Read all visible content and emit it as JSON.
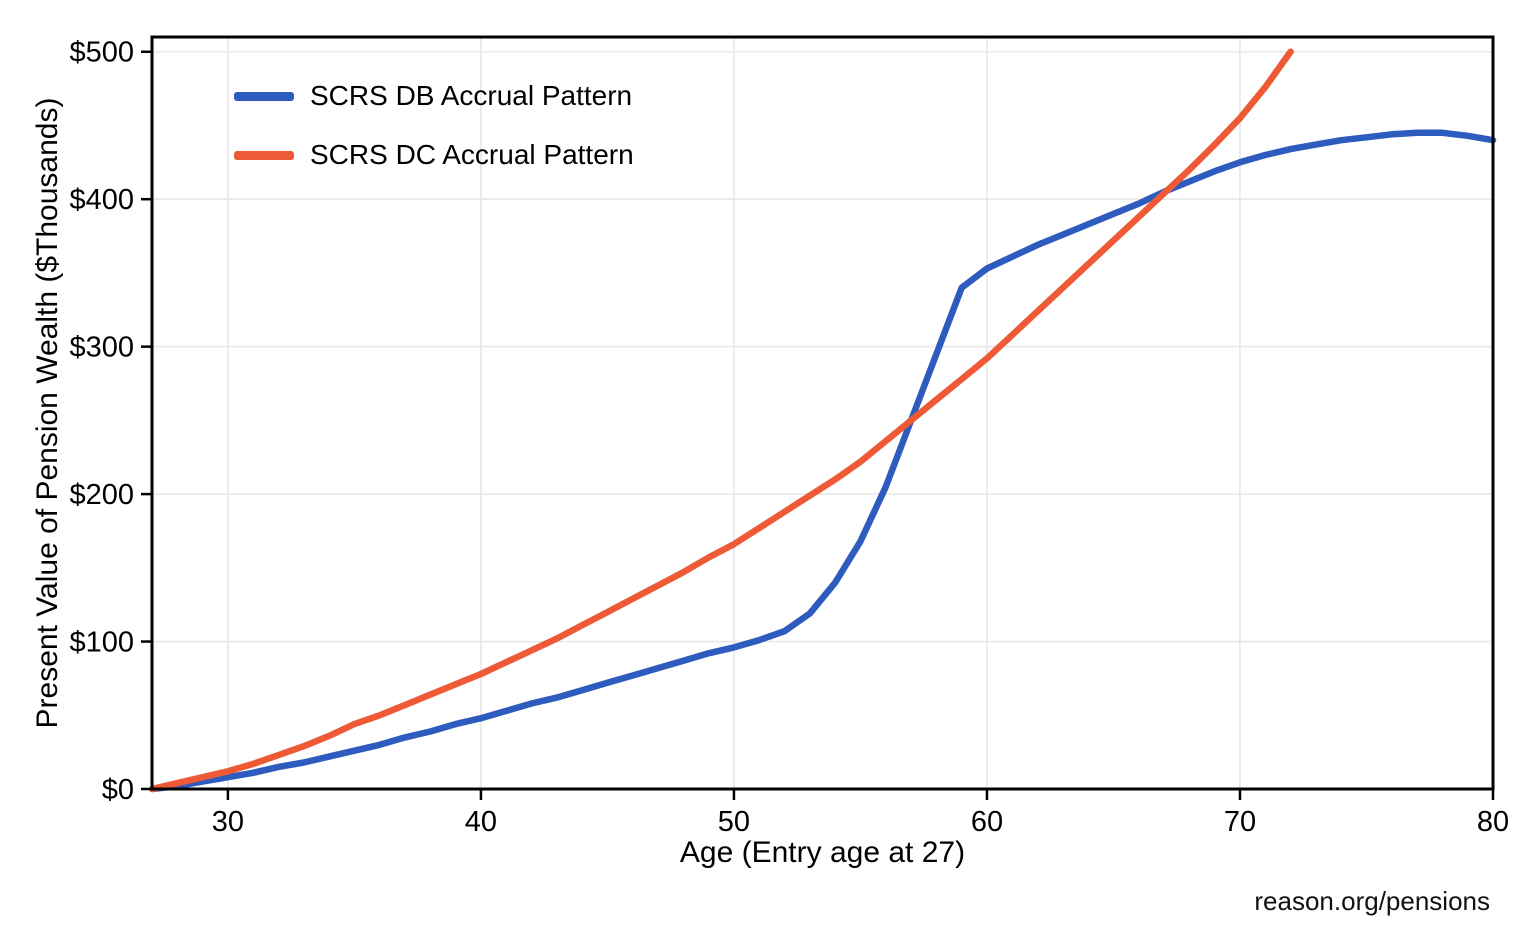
{
  "page": {
    "background": "#ffffff",
    "watermark": "reason.org/pensions"
  },
  "chart_data": {
    "type": "line",
    "title": "",
    "xlabel": "Age (Entry age at 27)",
    "ylabel": "Present Value of Pension Wealth ($Thousands)",
    "xlim": [
      27,
      80
    ],
    "ylim": [
      0,
      510
    ],
    "x_ticks": [
      30,
      40,
      50,
      60,
      70,
      80
    ],
    "y_ticks": [
      0,
      100,
      200,
      300,
      400,
      500
    ],
    "y_tick_labels": [
      "$0",
      "$100",
      "$200",
      "$300",
      "$400",
      "$500"
    ],
    "grid": true,
    "grid_color": "#e8e8e8",
    "border_color": "#000000",
    "legend_position": "top-left-inside",
    "series": [
      {
        "name": "SCRS DB Accrual Pattern",
        "color": "#2e5cbe",
        "points": [
          [
            27,
            0
          ],
          [
            28,
            2
          ],
          [
            29,
            5
          ],
          [
            30,
            8
          ],
          [
            31,
            11
          ],
          [
            32,
            15
          ],
          [
            33,
            18
          ],
          [
            34,
            22
          ],
          [
            35,
            26
          ],
          [
            36,
            30
          ],
          [
            37,
            35
          ],
          [
            38,
            39
          ],
          [
            39,
            44
          ],
          [
            40,
            48
          ],
          [
            41,
            53
          ],
          [
            42,
            58
          ],
          [
            43,
            62
          ],
          [
            44,
            67
          ],
          [
            45,
            72
          ],
          [
            46,
            77
          ],
          [
            47,
            82
          ],
          [
            48,
            87
          ],
          [
            49,
            92
          ],
          [
            50,
            96
          ],
          [
            51,
            101
          ],
          [
            52,
            107
          ],
          [
            53,
            119
          ],
          [
            54,
            140
          ],
          [
            55,
            168
          ],
          [
            56,
            205
          ],
          [
            57,
            250
          ],
          [
            58,
            295
          ],
          [
            59,
            340
          ],
          [
            60,
            353
          ],
          [
            61,
            361
          ],
          [
            62,
            369
          ],
          [
            63,
            376
          ],
          [
            64,
            383
          ],
          [
            65,
            390
          ],
          [
            66,
            397
          ],
          [
            67,
            405
          ],
          [
            68,
            412
          ],
          [
            69,
            419
          ],
          [
            70,
            425
          ],
          [
            71,
            430
          ],
          [
            72,
            434
          ],
          [
            73,
            437
          ],
          [
            74,
            440
          ],
          [
            75,
            442
          ],
          [
            76,
            444
          ],
          [
            77,
            445
          ],
          [
            78,
            445
          ],
          [
            79,
            443
          ],
          [
            80,
            440
          ]
        ]
      },
      {
        "name": "SCRS DC Accrual Pattern",
        "color": "#ee5a36",
        "points": [
          [
            27,
            0
          ],
          [
            28,
            4
          ],
          [
            29,
            8
          ],
          [
            30,
            12
          ],
          [
            31,
            17
          ],
          [
            32,
            23
          ],
          [
            33,
            29
          ],
          [
            34,
            36
          ],
          [
            35,
            44
          ],
          [
            36,
            50
          ],
          [
            37,
            57
          ],
          [
            38,
            64
          ],
          [
            39,
            71
          ],
          [
            40,
            78
          ],
          [
            41,
            86
          ],
          [
            42,
            94
          ],
          [
            43,
            102
          ],
          [
            44,
            111
          ],
          [
            45,
            120
          ],
          [
            46,
            129
          ],
          [
            47,
            138
          ],
          [
            48,
            147
          ],
          [
            49,
            157
          ],
          [
            50,
            166
          ],
          [
            51,
            177
          ],
          [
            52,
            188
          ],
          [
            53,
            199
          ],
          [
            54,
            210
          ],
          [
            55,
            222
          ],
          [
            56,
            236
          ],
          [
            57,
            250
          ],
          [
            58,
            264
          ],
          [
            59,
            278
          ],
          [
            60,
            292
          ],
          [
            61,
            308
          ],
          [
            62,
            324
          ],
          [
            63,
            340
          ],
          [
            64,
            356
          ],
          [
            65,
            372
          ],
          [
            66,
            388
          ],
          [
            67,
            404
          ],
          [
            68,
            420
          ],
          [
            69,
            437
          ],
          [
            70,
            455
          ],
          [
            71,
            476
          ],
          [
            72,
            500
          ]
        ]
      }
    ]
  }
}
